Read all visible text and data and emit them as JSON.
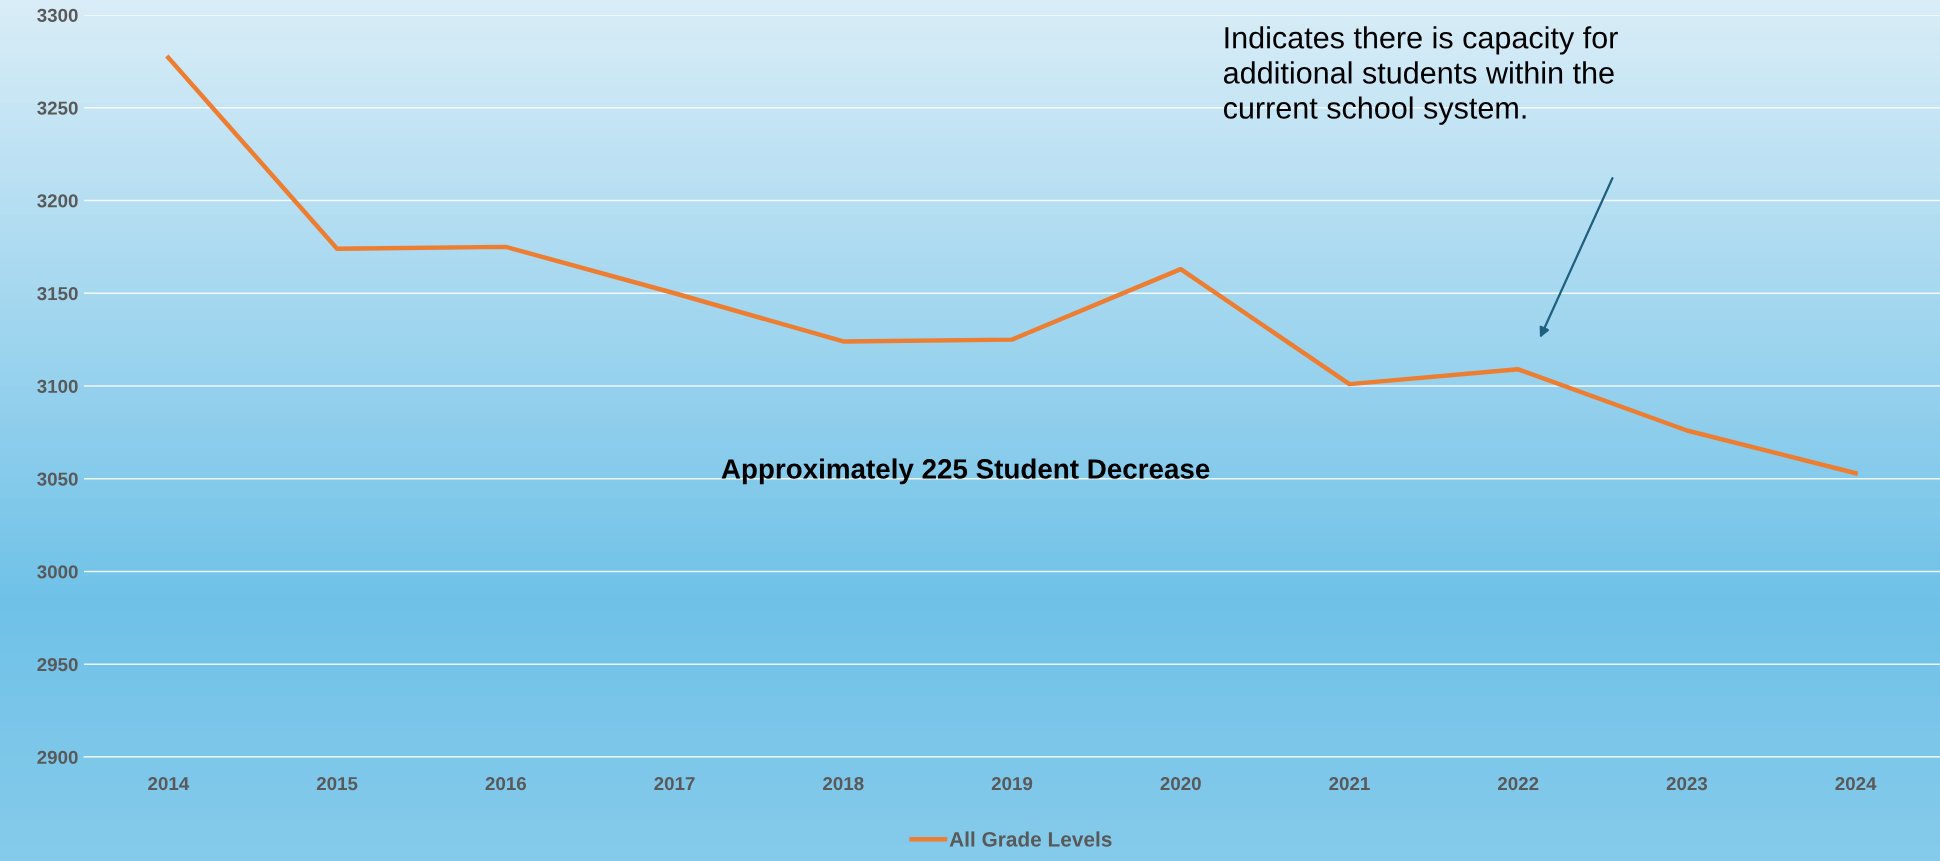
{
  "chart_data": {
    "type": "line",
    "categories": [
      "2014",
      "2015",
      "2016",
      "2017",
      "2018",
      "2019",
      "2020",
      "2021",
      "2022",
      "2023",
      "2024"
    ],
    "series": [
      {
        "name": "All Grade Levels",
        "color": "#ed7d31",
        "values": [
          3277,
          3174,
          3175,
          3150,
          3124,
          3125,
          3163,
          3101,
          3109,
          3076,
          3053
        ]
      }
    ],
    "ylim": [
      2900,
      3300
    ],
    "yticks": [
      2900,
      2950,
      3000,
      3050,
      3100,
      3150,
      3200,
      3250,
      3300
    ],
    "annotations": [
      "Indicates there is capacity for\nadditional students within the\ncurrent school system.",
      "Approximately 225 Student Decrease"
    ],
    "grid": "y",
    "legend": "bottom",
    "marker": "none",
    "line_style": "solid"
  }
}
